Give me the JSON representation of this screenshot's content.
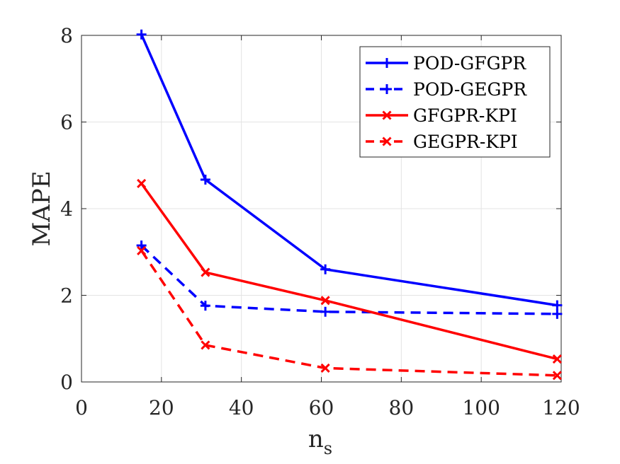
{
  "chart_data": {
    "type": "line",
    "title": "",
    "xlabel": "n",
    "xlabel_subscript": "s",
    "ylabel": "MAPE",
    "xlim": [
      0,
      120
    ],
    "ylim": [
      0,
      8
    ],
    "xticks": [
      0,
      20,
      40,
      60,
      80,
      100,
      120
    ],
    "yticks": [
      0,
      2,
      4,
      6,
      8
    ],
    "xtick_labels": [
      "0",
      "20",
      "40",
      "60",
      "80",
      "100",
      "120"
    ],
    "ytick_labels": [
      "0",
      "2",
      "4",
      "6",
      "8"
    ],
    "grid": true,
    "legend_position": "top-right",
    "x": [
      15,
      31,
      61,
      119
    ],
    "series": [
      {
        "name": "POD-GFGPR",
        "values": [
          8.02,
          4.67,
          2.6,
          1.77
        ],
        "color": "#0000ff",
        "linestyle": "solid",
        "marker": "plus"
      },
      {
        "name": "POD-GEGPR",
        "values": [
          3.15,
          1.76,
          1.62,
          1.57
        ],
        "color": "#0000ff",
        "linestyle": "dashed",
        "marker": "plus"
      },
      {
        "name": "GFGPR-KPI",
        "values": [
          4.58,
          2.53,
          1.88,
          0.53
        ],
        "color": "#ff0000",
        "linestyle": "solid",
        "marker": "x"
      },
      {
        "name": "GEGPR-KPI",
        "values": [
          3.03,
          0.85,
          0.32,
          0.15
        ],
        "color": "#ff0000",
        "linestyle": "dashed",
        "marker": "x"
      }
    ]
  }
}
